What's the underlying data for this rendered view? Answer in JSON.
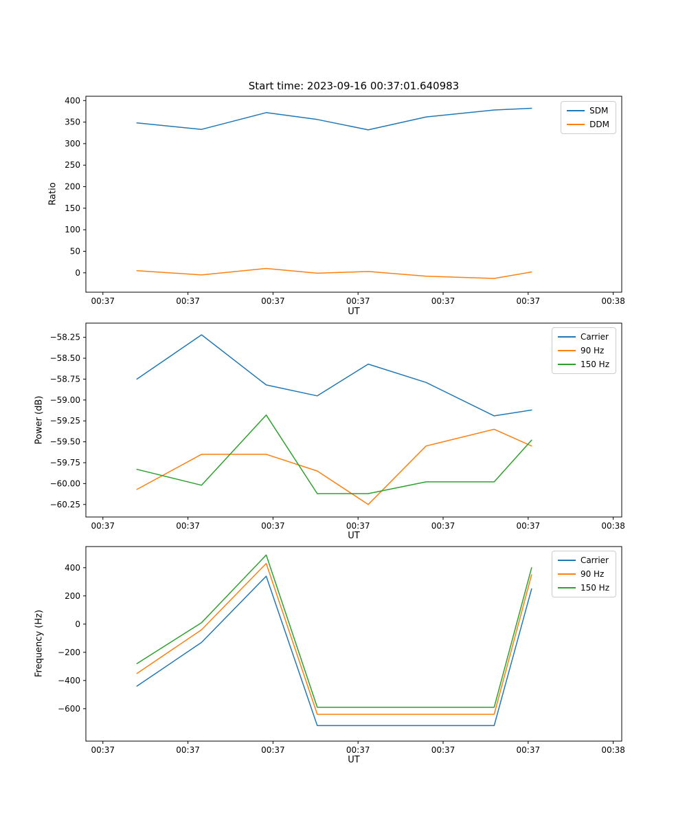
{
  "figure": {
    "background": "#ffffff",
    "title": "Start time: 2023-09-16 00:37:01.640983"
  },
  "colors": {
    "blue": "#1f77b4",
    "orange": "#ff7f0e",
    "green": "#2ca02c",
    "axes": "#000000",
    "legend_border": "#cccccc"
  },
  "chart_data": [
    {
      "type": "line",
      "title": "Start time: 2023-09-16 00:37:01.640983",
      "xlabel": "UT",
      "ylabel": "Ratio",
      "x_seconds_after_0037": [
        4.0,
        11.6,
        19.2,
        25.2,
        31.2,
        38.0,
        46.0,
        50.4
      ],
      "series": [
        {
          "name": "SDM",
          "color": "#1f77b4",
          "values": [
            348,
            333,
            372,
            356,
            332,
            362,
            378,
            382
          ]
        },
        {
          "name": "DDM",
          "color": "#ff7f0e",
          "values": [
            5,
            -5,
            10,
            -1,
            3,
            -8,
            -13,
            2
          ]
        }
      ],
      "xlim": [
        -2,
        61
      ],
      "ylim": [
        -45,
        410
      ],
      "xticks": {
        "values": [
          0,
          10,
          20,
          30,
          40,
          50,
          60
        ],
        "labels": [
          "00:37",
          "00:37",
          "00:37",
          "00:37",
          "00:37",
          "00:37",
          "00:38"
        ]
      },
      "yticks": {
        "values": [
          0,
          50,
          100,
          150,
          200,
          250,
          300,
          350,
          400
        ],
        "labels": [
          "0",
          "50",
          "100",
          "150",
          "200",
          "250",
          "300",
          "350",
          "400"
        ]
      },
      "legend": {
        "position": "upper right",
        "entries": [
          "SDM",
          "DDM"
        ]
      },
      "grid": false
    },
    {
      "type": "line",
      "title": "",
      "xlabel": "UT",
      "ylabel": "Power (dB)",
      "x_seconds_after_0037": [
        4.0,
        11.6,
        19.2,
        25.2,
        31.2,
        38.0,
        46.0,
        50.4
      ],
      "series": [
        {
          "name": "Carrier",
          "color": "#1f77b4",
          "values": [
            -58.75,
            -58.22,
            -58.82,
            -58.95,
            -58.57,
            -58.79,
            -59.19,
            -59.12
          ]
        },
        {
          "name": "90 Hz",
          "color": "#ff7f0e",
          "values": [
            -60.07,
            -59.65,
            -59.65,
            -59.85,
            -60.25,
            -59.55,
            -59.35,
            -59.55
          ]
        },
        {
          "name": "150 Hz",
          "color": "#2ca02c",
          "values": [
            -59.83,
            -60.02,
            -59.18,
            -60.12,
            -60.12,
            -59.98,
            -59.98,
            -59.48
          ]
        }
      ],
      "xlim": [
        -2,
        61
      ],
      "ylim": [
        -60.4,
        -58.08
      ],
      "xticks": {
        "values": [
          0,
          10,
          20,
          30,
          40,
          50,
          60
        ],
        "labels": [
          "00:37",
          "00:37",
          "00:37",
          "00:37",
          "00:37",
          "00:37",
          "00:38"
        ]
      },
      "yticks": {
        "values": [
          -60.25,
          -60.0,
          -59.75,
          -59.5,
          -59.25,
          -59.0,
          -58.75,
          -58.5,
          -58.25
        ],
        "labels": [
          "−60.25",
          "−60.00",
          "−59.75",
          "−59.50",
          "−59.25",
          "−59.00",
          "−58.75",
          "−58.50",
          "−58.25"
        ]
      },
      "legend": {
        "position": "upper right",
        "entries": [
          "Carrier",
          "90 Hz",
          "150 Hz"
        ]
      },
      "grid": false
    },
    {
      "type": "line",
      "title": "",
      "xlabel": "UT",
      "ylabel": "Frequency (Hz)",
      "x_seconds_after_0037": [
        4.0,
        11.6,
        19.2,
        25.2,
        31.2,
        38.0,
        46.0,
        50.4
      ],
      "series": [
        {
          "name": "Carrier",
          "color": "#1f77b4",
          "values": [
            -440,
            -130,
            340,
            -720,
            -720,
            -720,
            -720,
            250
          ]
        },
        {
          "name": "90 Hz",
          "color": "#ff7f0e",
          "values": [
            -350,
            -40,
            430,
            -640,
            -640,
            -640,
            -640,
            350
          ]
        },
        {
          "name": "150 Hz",
          "color": "#2ca02c",
          "values": [
            -280,
            10,
            490,
            -590,
            -590,
            -590,
            -590,
            400
          ]
        }
      ],
      "xlim": [
        -2,
        61
      ],
      "ylim": [
        -830,
        550
      ],
      "xticks": {
        "values": [
          0,
          10,
          20,
          30,
          40,
          50,
          60
        ],
        "labels": [
          "00:37",
          "00:37",
          "00:37",
          "00:37",
          "00:37",
          "00:37",
          "00:38"
        ]
      },
      "yticks": {
        "values": [
          -600,
          -400,
          -200,
          0,
          200,
          400
        ],
        "labels": [
          "−600",
          "−400",
          "−200",
          "0",
          "200",
          "400"
        ]
      },
      "legend": {
        "position": "upper right",
        "entries": [
          "Carrier",
          "90 Hz",
          "150 Hz"
        ]
      },
      "grid": false
    }
  ]
}
